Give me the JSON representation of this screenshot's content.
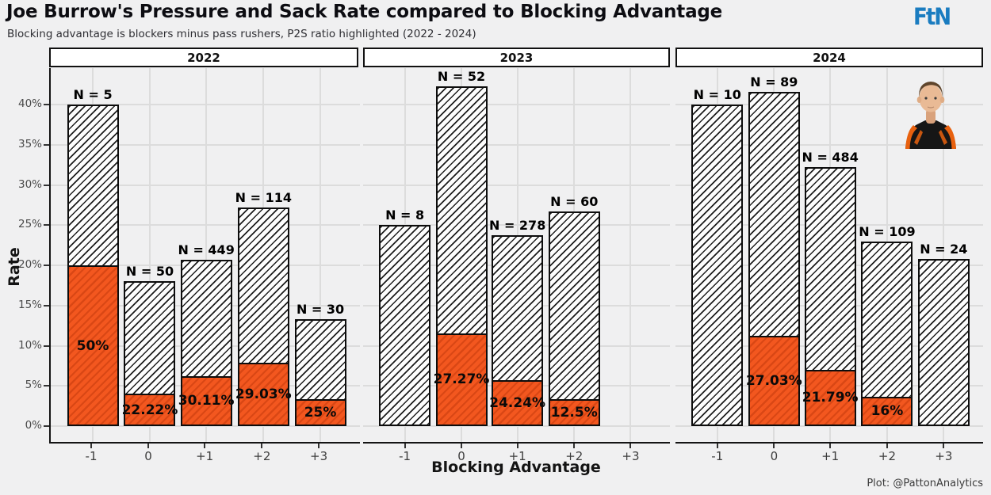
{
  "header": {
    "title": "Joe Burrow's Pressure and Sack Rate compared to Blocking Advantage",
    "subtitle": "Blocking advantage is blockers minus pass rushers, P2S ratio highlighted (2022 - 2024)",
    "logo_text": "FtN"
  },
  "caption": "Plot: @PattonAnalytics",
  "colors": {
    "sack_orange": "#F3571F",
    "logo_blue": "#1A7CC0",
    "background": "#F0F0F1",
    "gridline": "#DCDCDC",
    "bar_outline": "#0D0D0D"
  },
  "icons": {
    "player_avatar": "joe-burrow-headshot",
    "logo": "ftn-logo"
  },
  "chart_data": {
    "type": "bar",
    "title": "Joe Burrow's Pressure and Sack Rate compared to Blocking Advantage",
    "subtitle": "Blocking advantage is blockers minus pass rushers, P2S ratio highlighted (2022 - 2024)",
    "xlabel": "Blocking Advantage",
    "ylabel": "Rate",
    "ylim": [
      0,
      44.5
    ],
    "ytick_percent_values": [
      0,
      5,
      10,
      15,
      20,
      25,
      30,
      35,
      40
    ],
    "categories": [
      "-1",
      "0",
      "+1",
      "+2",
      "+3"
    ],
    "grid": "on",
    "legend": "none",
    "series_meaning": {
      "hatched_white_bar": "Pressure rate (% of dropbacks)",
      "orange_bar": "Sack rate (% of dropbacks), labeled with P2S ratio"
    },
    "panels": [
      {
        "year": "2022",
        "bars": [
          {
            "category": "-1",
            "n_label": "N = 5",
            "pressure_rate": 40.0,
            "sack_rate": 20.0,
            "p2s_label": "50%"
          },
          {
            "category": "0",
            "n_label": "N = 50",
            "pressure_rate": 18.0,
            "sack_rate": 4.0,
            "p2s_label": "22.22%"
          },
          {
            "category": "+1",
            "n_label": "N = 449",
            "pressure_rate": 20.71,
            "sack_rate": 6.24,
            "p2s_label": "30.11%"
          },
          {
            "category": "+2",
            "n_label": "N = 114",
            "pressure_rate": 27.19,
            "sack_rate": 7.89,
            "p2s_label": "29.03%"
          },
          {
            "category": "+3",
            "n_label": "N = 30",
            "pressure_rate": 13.33,
            "sack_rate": 3.33,
            "p2s_label": "25%"
          }
        ]
      },
      {
        "year": "2023",
        "bars": [
          {
            "category": "-1",
            "n_label": "N = 8",
            "pressure_rate": 25.0,
            "sack_rate": null,
            "p2s_label": null
          },
          {
            "category": "0",
            "n_label": "N = 52",
            "pressure_rate": 42.31,
            "sack_rate": 11.54,
            "p2s_label": "27.27%"
          },
          {
            "category": "+1",
            "n_label": "N = 278",
            "pressure_rate": 23.74,
            "sack_rate": 5.76,
            "p2s_label": "24.24%"
          },
          {
            "category": "+2",
            "n_label": "N = 60",
            "pressure_rate": 26.67,
            "sack_rate": 3.33,
            "p2s_label": "12.5%"
          }
        ]
      },
      {
        "year": "2024",
        "bars": [
          {
            "category": "-1",
            "n_label": "N = 10",
            "pressure_rate": 40.0,
            "sack_rate": null,
            "p2s_label": null
          },
          {
            "category": "0",
            "n_label": "N = 89",
            "pressure_rate": 41.57,
            "sack_rate": 11.24,
            "p2s_label": "27.03%"
          },
          {
            "category": "+1",
            "n_label": "N = 484",
            "pressure_rate": 32.23,
            "sack_rate": 7.02,
            "p2s_label": "21.79%"
          },
          {
            "category": "+2",
            "n_label": "N = 109",
            "pressure_rate": 22.94,
            "sack_rate": 3.67,
            "p2s_label": "16%"
          },
          {
            "category": "+3",
            "n_label": "N = 24",
            "pressure_rate": 20.83,
            "sack_rate": null,
            "p2s_label": null
          }
        ]
      }
    ]
  }
}
